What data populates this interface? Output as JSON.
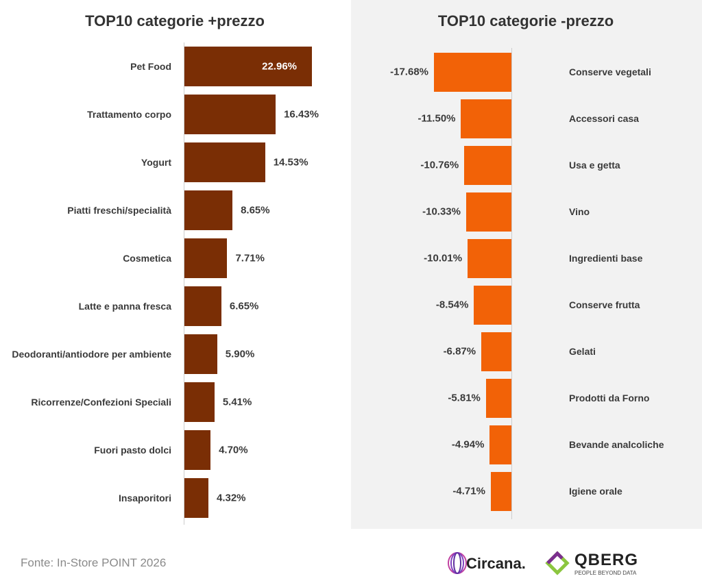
{
  "chart_data": [
    {
      "type": "bar",
      "orientation": "horizontal",
      "title": "TOP10 categorie +prezzo",
      "color": "#7a2e05",
      "categories": [
        "Pet Food",
        "Trattamento corpo",
        "Yogurt",
        "Piatti freschi/specialità",
        "Cosmetica",
        "Latte e panna fresca",
        "Deodoranti/antiodore per ambiente",
        "Ricorrenze/Confezioni Speciali",
        "Fuori pasto dolci",
        "Insaporitori"
      ],
      "values": [
        22.96,
        16.43,
        14.53,
        8.65,
        7.71,
        6.65,
        5.9,
        5.41,
        4.7,
        4.32
      ],
      "value_labels": [
        "22.96%",
        "16.43%",
        "14.53%",
        "8.65%",
        "7.71%",
        "6.65%",
        "5.90%",
        "5.41%",
        "4.70%",
        "4.32%"
      ]
    },
    {
      "type": "bar",
      "orientation": "horizontal",
      "title": "TOP10 categorie -prezzo",
      "color": "#f26207",
      "categories": [
        "Conserve vegetali",
        "Accessori casa",
        "Usa e getta",
        "Vino",
        "Ingredienti base",
        "Conserve frutta",
        "Gelati",
        "Prodotti da Forno",
        "Bevande analcoliche",
        "Igiene orale"
      ],
      "values": [
        -17.68,
        -11.5,
        -10.76,
        -10.33,
        -10.01,
        -8.54,
        -6.87,
        -5.81,
        -4.94,
        -4.71
      ],
      "value_labels": [
        "-17.68%",
        "-11.50%",
        "-10.76%",
        "-10.33%",
        "-10.01%",
        "-8.54%",
        "-6.87%",
        "-5.81%",
        "-4.94%",
        "-4.71%"
      ]
    }
  ],
  "footer": {
    "source": "Fonte: In-Store POINT 2026",
    "logo_1": "Circana.",
    "logo_2": "QBERG",
    "logo_2_tagline": "PEOPLE BEYOND DATA"
  }
}
